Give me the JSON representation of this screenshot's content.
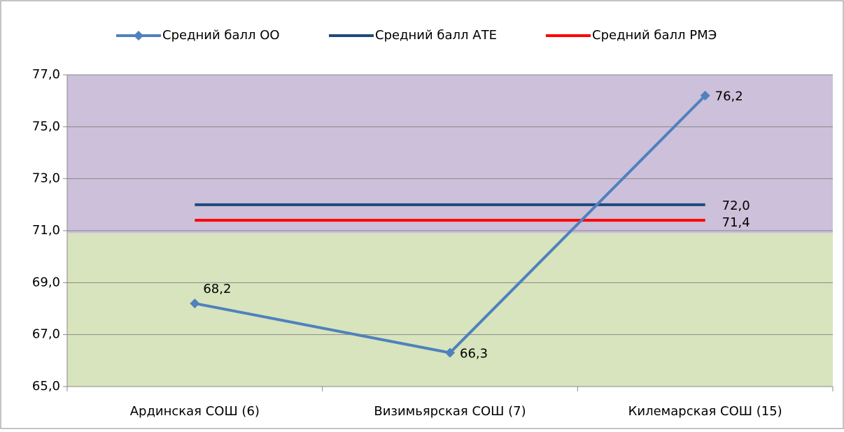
{
  "chart_data": {
    "type": "line",
    "categories": [
      "Ардинская СОШ (6)",
      "Визимьярская СОШ (7)",
      "Килемарская СОШ (15)"
    ],
    "series": [
      {
        "name": "Средний балл ОО",
        "color": "#4f81bd",
        "marker": "diamond",
        "values": [
          68.2,
          66.3,
          76.2
        ],
        "value_labels": [
          "68,2",
          "66,3",
          "76,2"
        ]
      },
      {
        "name": "Средний балл АТЕ",
        "color": "#1f497d",
        "values": [
          72.0,
          72.0,
          72.0
        ],
        "value_labels": [
          null,
          null,
          "72,0"
        ]
      },
      {
        "name": "Средний балл РМЭ",
        "color": "#ff0000",
        "values": [
          71.4,
          71.4,
          71.4
        ],
        "value_labels": [
          null,
          null,
          "71,4"
        ]
      }
    ],
    "ylim": [
      65,
      77
    ],
    "yticks": [
      {
        "value": 65,
        "label": "65,0"
      },
      {
        "value": 67,
        "label": "67,0"
      },
      {
        "value": 69,
        "label": "69,0"
      },
      {
        "value": 71,
        "label": "71,0"
      },
      {
        "value": 73,
        "label": "73,0"
      },
      {
        "value": 75,
        "label": "75,0"
      },
      {
        "value": 77,
        "label": "77,0"
      }
    ],
    "bands": [
      {
        "from": 65,
        "to": 70.9,
        "color": "#d7e4bd"
      },
      {
        "from": 70.9,
        "to": 77,
        "color": "#ccc0da"
      }
    ],
    "grid": true,
    "legend": "top"
  }
}
